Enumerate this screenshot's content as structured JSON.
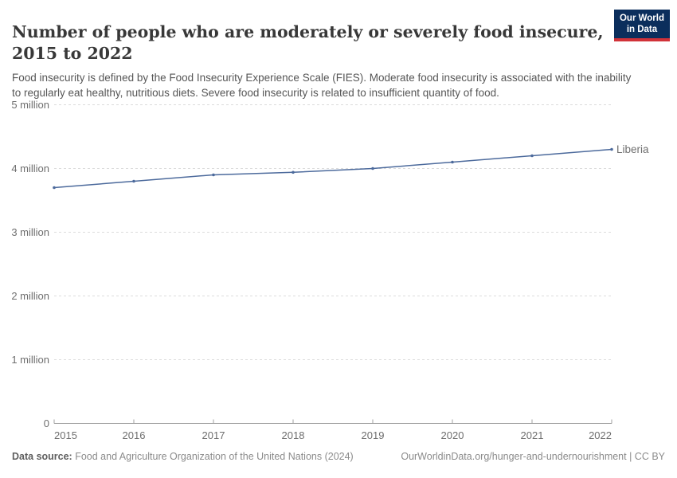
{
  "header": {
    "title_line1": "Number of people who are moderately or severely food insecure,",
    "title_line2": "2015 to 2022",
    "subtitle": "Food insecurity is defined by the Food Insecurity Experience Scale (FIES). Moderate food insecurity is associated with the inability to regularly eat healthy, nutritious diets. Severe food insecurity is related to insufficient quantity of food.",
    "logo": {
      "line1": "Our World",
      "line2": "in Data",
      "bg_color": "#0b2e5c",
      "accent_color": "#d13239"
    }
  },
  "chart_data": {
    "type": "line",
    "title": "Number of people who are moderately or severely food insecure, 2015 to 2022",
    "x": [
      2015,
      2016,
      2017,
      2018,
      2019,
      2020,
      2021,
      2022
    ],
    "x_tick_labels": [
      "2015",
      "2016",
      "2017",
      "2018",
      "2019",
      "2020",
      "2021",
      "2022"
    ],
    "series": [
      {
        "name": "Liberia",
        "color": "#4c6a9c",
        "values": [
          3700000,
          3800000,
          3900000,
          3940000,
          4000000,
          4100000,
          4200000,
          4300000
        ],
        "values_millions": [
          3.7,
          3.8,
          3.9,
          3.94,
          4.0,
          4.1,
          4.2,
          4.3
        ]
      }
    ],
    "ylim_millions": [
      0,
      5
    ],
    "y_ticks": [
      {
        "value": 0,
        "label": "0"
      },
      {
        "value": 1,
        "label": "1 million"
      },
      {
        "value": 2,
        "label": "2 million"
      },
      {
        "value": 3,
        "label": "3 million"
      },
      {
        "value": 4,
        "label": "4 million"
      },
      {
        "value": 5,
        "label": "5 million"
      }
    ],
    "grid": "horizontal-dashed",
    "legend": "line-end-label"
  },
  "footer": {
    "datasource_label": "Data source:",
    "datasource_text": " Food and Agriculture Organization of the United Nations (2024)",
    "attribution": "OurWorldinData.org/hunger-and-undernourishment | CC BY"
  }
}
